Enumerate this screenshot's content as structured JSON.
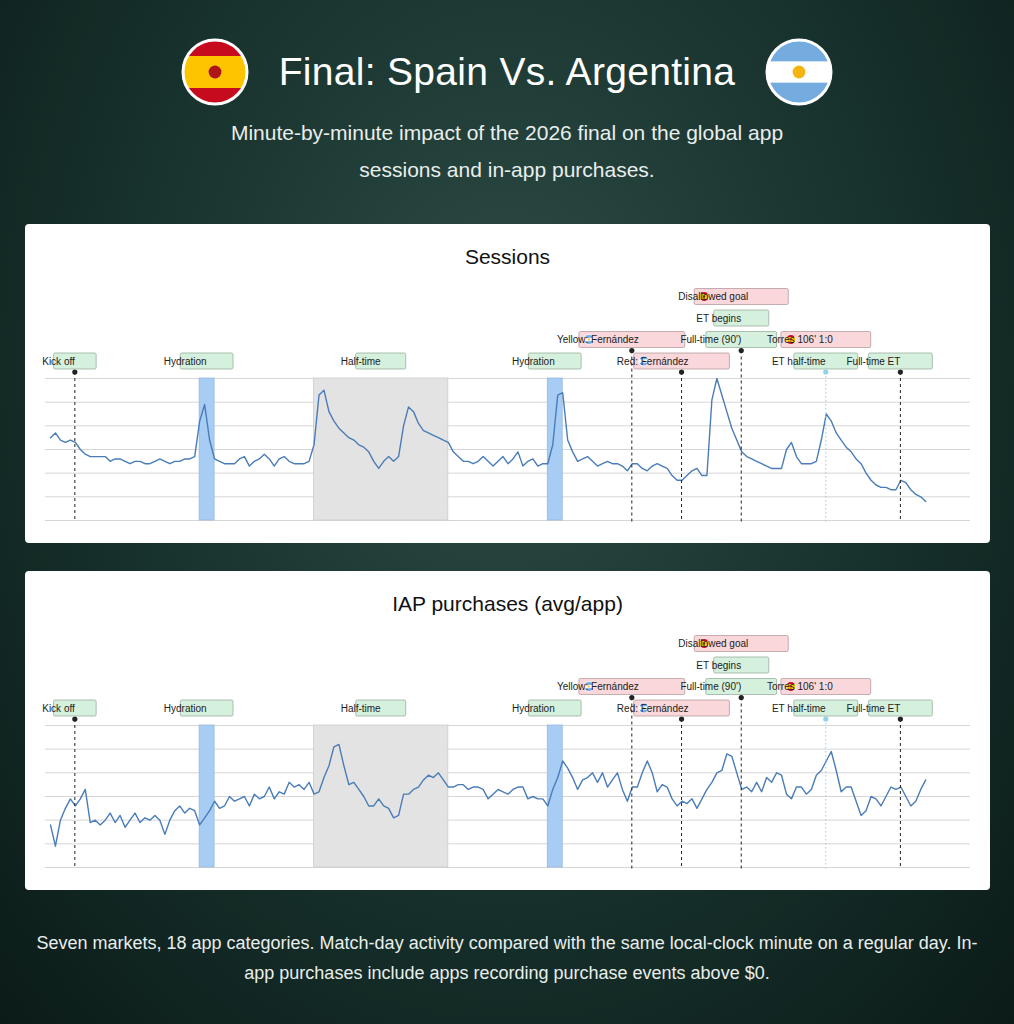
{
  "title": "Final: Spain Vs. Argentina",
  "subtitle": "Minute-by-minute impact of the 2026 final on the global app sessions and in-app purchases.",
  "caption": "Seven markets, 18 app categories. Match-day activity compared with the same local-clock minute on a regular day. In-app purchases include apps recording purchase events above $0.",
  "teams": [
    {
      "name": "Spain",
      "stripes": [
        "#c60b1e",
        "#ffc400",
        "#ffc400",
        "#c60b1e"
      ],
      "emblem": "#ad1519"
    },
    {
      "name": "Argentina",
      "stripes": [
        "#74acdf",
        "#ffffff",
        "#74acdf"
      ],
      "emblem": "#f6b40e"
    }
  ],
  "chart_data": [
    {
      "type": "line",
      "title": "Sessions",
      "x": [
        -5,
        -4,
        -3,
        -2,
        -1,
        0,
        1,
        2,
        3,
        4,
        5,
        6,
        7,
        8,
        9,
        10,
        11,
        12,
        13,
        14,
        15,
        16,
        17,
        18,
        19,
        20,
        21,
        22,
        23,
        24,
        25,
        26,
        27,
        28,
        29,
        30,
        31,
        32,
        33,
        34,
        35,
        36,
        37,
        38,
        39,
        40,
        41,
        42,
        43,
        44,
        45,
        46,
        47,
        48,
        49,
        50,
        51,
        52,
        53,
        54,
        55,
        56,
        57,
        58,
        59,
        60,
        61,
        62,
        63,
        64,
        65,
        66,
        67,
        68,
        69,
        70,
        71,
        72,
        73,
        74,
        75,
        76,
        77,
        78,
        79,
        80,
        81,
        82,
        83,
        84,
        85,
        86,
        87,
        88,
        89,
        90,
        91,
        92,
        93,
        94,
        95,
        96,
        97,
        98,
        99,
        100,
        101,
        102,
        103,
        104,
        105,
        106,
        107,
        108,
        109,
        110,
        111,
        112,
        113,
        114,
        115,
        116,
        117,
        118,
        119,
        120,
        121,
        122,
        123,
        124,
        125,
        126,
        127,
        128,
        129,
        130,
        131,
        132,
        133,
        134,
        135,
        136,
        137,
        138,
        139,
        140,
        141,
        142,
        143,
        144,
        145,
        146,
        147,
        148,
        149,
        150,
        151,
        152,
        153,
        154,
        155,
        156,
        157,
        158,
        159,
        160,
        161,
        162,
        163,
        164,
        165,
        166,
        167,
        168,
        169,
        170,
        171
      ],
      "values": [
        3.5,
        3.7,
        3.4,
        3.3,
        3.4,
        3.3,
        3.0,
        2.8,
        2.7,
        2.7,
        2.7,
        2.7,
        2.5,
        2.6,
        2.6,
        2.5,
        2.4,
        2.5,
        2.5,
        2.4,
        2.4,
        2.5,
        2.6,
        2.5,
        2.4,
        2.5,
        2.5,
        2.6,
        2.6,
        2.7,
        4.2,
        4.9,
        3.4,
        2.6,
        2.5,
        2.4,
        2.4,
        2.4,
        2.6,
        2.7,
        2.3,
        2.5,
        2.6,
        2.8,
        2.6,
        2.3,
        2.6,
        2.7,
        2.5,
        2.4,
        2.4,
        2.4,
        2.5,
        3.2,
        5.3,
        5.5,
        4.6,
        4.2,
        3.9,
        3.7,
        3.5,
        3.4,
        3.2,
        3.1,
        2.9,
        2.5,
        2.2,
        2.5,
        2.7,
        2.5,
        2.7,
        4.0,
        4.8,
        4.6,
        4.1,
        3.8,
        3.7,
        3.6,
        3.5,
        3.4,
        3.3,
        2.9,
        2.7,
        2.5,
        2.5,
        2.4,
        2.5,
        2.7,
        2.5,
        2.3,
        2.5,
        2.7,
        2.4,
        2.6,
        2.9,
        2.3,
        2.5,
        2.6,
        2.3,
        2.4,
        2.4,
        3.2,
        5.3,
        5.4,
        3.4,
        2.9,
        2.5,
        2.6,
        2.7,
        2.5,
        2.3,
        2.4,
        2.5,
        2.4,
        2.4,
        2.3,
        2.1,
        2.4,
        2.4,
        2.2,
        2.1,
        2.3,
        2.4,
        2.3,
        2.2,
        1.9,
        1.7,
        1.7,
        1.9,
        2.1,
        2.2,
        1.9,
        1.9,
        5.1,
        6.0,
        5.3,
        4.6,
        3.9,
        3.4,
        2.9,
        2.7,
        2.6,
        2.5,
        2.4,
        2.3,
        2.2,
        2.2,
        2.2,
        3.0,
        3.3,
        2.7,
        2.4,
        2.4,
        2.4,
        2.5,
        3.4,
        4.5,
        4.2,
        3.7,
        3.4,
        3.1,
        2.9,
        2.6,
        2.4,
        2.0,
        1.7,
        1.5,
        1.4,
        1.4,
        1.3,
        1.3,
        1.7,
        1.6,
        1.3,
        1.1,
        1.0,
        0.8
      ],
      "color": "#4a7cb8",
      "xlim": [
        -6,
        180
      ],
      "xticks": [],
      "ylim": [
        0,
        6
      ],
      "yticks": [
        0,
        1,
        2,
        3,
        4,
        5,
        6
      ],
      "grid": true,
      "tick_labels": false,
      "annotations": [
        {
          "text": "Kick off",
          "x": 0,
          "color": "#d5f0dd",
          "marker": "line",
          "marker_color": "#222222",
          "line_style": "dashed"
        },
        {
          "text": "Hydration",
          "x": 25,
          "x_end": 28,
          "color": "#d5f0dd",
          "marker": "band",
          "marker_color": "#a8cdf4"
        },
        {
          "text": "Half-time",
          "x": 48,
          "x_end": 75,
          "color": "#d5f0dd",
          "marker": "band",
          "marker_color": "#e3e3e3"
        },
        {
          "text": "Hydration",
          "x": 95,
          "x_end": 98,
          "color": "#d5f0dd",
          "marker": "band",
          "marker_color": "#a8cdf4"
        },
        {
          "text": "Red: Fernández",
          "x": 122,
          "color": "#f9d7db",
          "team": "Argentina",
          "marker": "line",
          "marker_color": "#222222",
          "line_style": "dashed"
        },
        {
          "text": "Yellow: Fernández",
          "x": 112,
          "color": "#f9d7db",
          "team": "Argentina",
          "marker": "line",
          "marker_color": "#222222",
          "line_style": "dashed"
        },
        {
          "text": "Full-time (90')",
          "x": 134,
          "color": "#d5f0dd",
          "marker": "line",
          "marker_color": "#222222",
          "line_style": "dashed"
        },
        {
          "text": "ET begins",
          "x": 134,
          "color": "#d5f0dd",
          "marker": "line",
          "marker_color": "#222222",
          "line_style": "dashed"
        },
        {
          "text": "Disallowed goal",
          "x": 134,
          "color": "#f9d7db",
          "team": "Spain",
          "marker": "line",
          "marker_color": "#222222",
          "line_style": "dashed"
        },
        {
          "text": "ET half-time",
          "x": 151,
          "color": "#d5f0dd",
          "marker": "line",
          "marker_color": "#8fd3ea",
          "line_style": "dotted"
        },
        {
          "text": "Torres 106' 1:0",
          "x": 151,
          "color": "#f9d7db",
          "team": "Spain",
          "marker": "line",
          "marker_color": "#8fd3ea",
          "line_style": "dotted"
        },
        {
          "text": "Full-time ET",
          "x": 166,
          "color": "#d5f0dd",
          "marker": "line",
          "marker_color": "#222222",
          "line_style": "dashed"
        }
      ]
    },
    {
      "type": "line",
      "title": "IAP purchases (avg/app)",
      "x": [
        -5,
        -4,
        -3,
        -2,
        -1,
        0,
        1,
        2,
        3,
        4,
        5,
        6,
        7,
        8,
        9,
        10,
        11,
        12,
        13,
        14,
        15,
        16,
        17,
        18,
        19,
        20,
        21,
        22,
        23,
        24,
        25,
        26,
        27,
        28,
        29,
        30,
        31,
        32,
        33,
        34,
        35,
        36,
        37,
        38,
        39,
        40,
        41,
        42,
        43,
        44,
        45,
        46,
        47,
        48,
        49,
        50,
        51,
        52,
        53,
        54,
        55,
        56,
        57,
        58,
        59,
        60,
        61,
        62,
        63,
        64,
        65,
        66,
        67,
        68,
        69,
        70,
        71,
        72,
        73,
        74,
        75,
        76,
        77,
        78,
        79,
        80,
        81,
        82,
        83,
        84,
        85,
        86,
        87,
        88,
        89,
        90,
        91,
        92,
        93,
        94,
        95,
        96,
        97,
        98,
        99,
        100,
        101,
        102,
        103,
        104,
        105,
        106,
        107,
        108,
        109,
        110,
        111,
        112,
        113,
        114,
        115,
        116,
        117,
        118,
        119,
        120,
        121,
        122,
        123,
        124,
        125,
        126,
        127,
        128,
        129,
        130,
        131,
        132,
        133,
        134,
        135,
        136,
        137,
        138,
        139,
        140,
        141,
        142,
        143,
        144,
        145,
        146,
        147,
        148,
        149,
        150,
        151,
        152,
        153,
        154,
        155,
        156,
        157,
        158,
        159,
        160,
        161,
        162,
        163,
        164,
        165,
        166,
        167,
        168,
        169,
        170,
        171
      ],
      "values": [
        1.8,
        0.9,
        2.0,
        2.5,
        2.9,
        2.6,
        2.9,
        3.3,
        1.9,
        2.0,
        1.8,
        2.0,
        2.3,
        1.9,
        2.2,
        1.7,
        2.0,
        2.3,
        1.9,
        2.1,
        2.0,
        2.2,
        2.0,
        1.4,
        2.0,
        2.4,
        2.6,
        2.3,
        2.5,
        2.4,
        1.8,
        2.1,
        2.4,
        2.8,
        2.5,
        2.6,
        3.0,
        2.8,
        2.9,
        3.0,
        2.6,
        3.1,
        2.9,
        3.0,
        3.4,
        2.9,
        3.2,
        3.1,
        3.6,
        3.4,
        3.5,
        3.3,
        3.6,
        3.1,
        3.2,
        3.8,
        4.3,
        5.1,
        5.2,
        4.3,
        3.5,
        3.6,
        3.3,
        3.0,
        2.6,
        2.6,
        2.9,
        2.6,
        2.5,
        2.1,
        2.2,
        3.1,
        3.1,
        3.3,
        3.4,
        3.7,
        3.9,
        3.8,
        4.0,
        3.7,
        3.4,
        3.4,
        3.5,
        3.5,
        3.3,
        3.4,
        3.4,
        3.3,
        2.9,
        3.1,
        3.3,
        3.2,
        3.1,
        3.3,
        3.4,
        3.4,
        2.9,
        3.0,
        2.9,
        2.9,
        2.6,
        3.3,
        3.8,
        4.5,
        4.2,
        3.8,
        3.3,
        3.7,
        3.8,
        4.0,
        3.6,
        4.0,
        3.4,
        3.7,
        4.0,
        3.3,
        2.8,
        3.4,
        3.4,
        4.0,
        4.5,
        4.0,
        3.2,
        3.5,
        3.4,
        2.9,
        2.6,
        2.8,
        2.7,
        2.9,
        2.5,
        2.9,
        3.3,
        3.6,
        4.0,
        4.1,
        4.8,
        4.7,
        4.0,
        3.3,
        3.4,
        3.2,
        3.6,
        3.2,
        3.8,
        3.6,
        4.0,
        3.9,
        3.1,
        2.9,
        3.4,
        3.4,
        3.1,
        3.3,
        3.9,
        4.1,
        4.5,
        4.9,
        4.1,
        3.2,
        3.4,
        3.4,
        2.8,
        2.2,
        2.4,
        3.0,
        2.9,
        2.6,
        3.0,
        3.4,
        3.3,
        3.4,
        3.0,
        2.6,
        2.8,
        3.3,
        3.7
      ],
      "color": "#4a7cb8",
      "xlim": [
        -6,
        180
      ],
      "xticks": [],
      "ylim": [
        0,
        6
      ],
      "yticks": [
        0,
        1,
        2,
        3,
        4,
        5,
        6
      ],
      "grid": true,
      "tick_labels": false,
      "annotations": [
        {
          "text": "Kick off",
          "x": 0,
          "color": "#d5f0dd",
          "marker": "line",
          "marker_color": "#222222",
          "line_style": "dashed"
        },
        {
          "text": "Hydration",
          "x": 25,
          "x_end": 28,
          "color": "#d5f0dd",
          "marker": "band",
          "marker_color": "#a8cdf4"
        },
        {
          "text": "Half-time",
          "x": 48,
          "x_end": 75,
          "color": "#d5f0dd",
          "marker": "band",
          "marker_color": "#e3e3e3"
        },
        {
          "text": "Hydration",
          "x": 95,
          "x_end": 98,
          "color": "#d5f0dd",
          "marker": "band",
          "marker_color": "#a8cdf4"
        },
        {
          "text": "Red: Fernández",
          "x": 122,
          "color": "#f9d7db",
          "team": "Argentina",
          "marker": "line",
          "marker_color": "#222222",
          "line_style": "dashed"
        },
        {
          "text": "Yellow: Fernández",
          "x": 112,
          "color": "#f9d7db",
          "team": "Argentina",
          "marker": "line",
          "marker_color": "#222222",
          "line_style": "dashed"
        },
        {
          "text": "Full-time (90')",
          "x": 134,
          "color": "#d5f0dd",
          "marker": "line",
          "marker_color": "#222222",
          "line_style": "dashed"
        },
        {
          "text": "ET begins",
          "x": 134,
          "color": "#d5f0dd",
          "marker": "line",
          "marker_color": "#222222",
          "line_style": "dashed"
        },
        {
          "text": "Disallowed goal",
          "x": 134,
          "color": "#f9d7db",
          "team": "Spain",
          "marker": "line",
          "marker_color": "#222222",
          "line_style": "dashed"
        },
        {
          "text": "ET half-time",
          "x": 151,
          "color": "#d5f0dd",
          "marker": "line",
          "marker_color": "#8fd3ea",
          "line_style": "dotted"
        },
        {
          "text": "Torres 106' 1:0",
          "x": 151,
          "color": "#f9d7db",
          "team": "Spain",
          "marker": "line",
          "marker_color": "#8fd3ea",
          "line_style": "dotted"
        },
        {
          "text": "Full-time ET",
          "x": 166,
          "color": "#d5f0dd",
          "marker": "line",
          "marker_color": "#222222",
          "line_style": "dashed"
        }
      ]
    }
  ]
}
